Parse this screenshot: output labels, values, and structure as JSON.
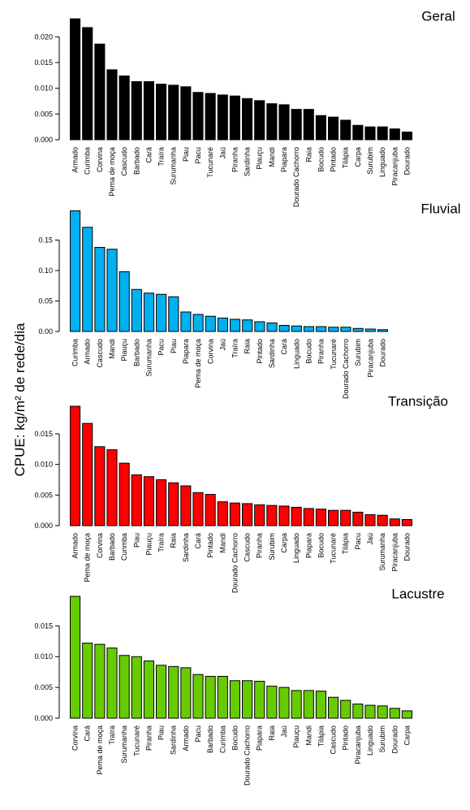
{
  "ylabel": "CPUE: kg/m² de rede/dia",
  "chart_data": [
    {
      "type": "bar",
      "title": "Geral",
      "color": "#000000",
      "ylim": [
        0,
        0.024
      ],
      "yticks": [
        "0.000",
        "0.005",
        "0.010",
        "0.015",
        "0.020"
      ],
      "yticks_values": [
        0,
        0.005,
        0.01,
        0.015,
        0.02
      ],
      "categories": [
        "Armado",
        "Curimba",
        "Corvina",
        "Pema de moça",
        "Cascudo",
        "Barbado",
        "Cará",
        "Traíra",
        "Surumanha",
        "Piau",
        "Pacu",
        "Tucunaré",
        "Jaú",
        "Piranha",
        "Sardinha",
        "Piauçu",
        "Mandi",
        "Piapara",
        "Dourado Cachorro",
        "Raia",
        "Bocudo",
        "Pintado",
        "Tilápia",
        "Carpa",
        "Surubim",
        "Linguado",
        "Piracanjuba",
        "Dourado"
      ],
      "values": [
        0.0235,
        0.0218,
        0.0186,
        0.0136,
        0.0124,
        0.0113,
        0.0113,
        0.0108,
        0.0106,
        0.0103,
        0.0092,
        0.009,
        0.0087,
        0.0085,
        0.008,
        0.0076,
        0.007,
        0.0068,
        0.0059,
        0.0059,
        0.0047,
        0.0044,
        0.0038,
        0.0028,
        0.0025,
        0.0025,
        0.0021,
        0.0015
      ]
    },
    {
      "type": "bar",
      "title": "Fluvial",
      "color": "#00b0f0",
      "ylim": [
        0,
        0.2
      ],
      "yticks": [
        "0.00",
        "0.05",
        "0.10",
        "0.15"
      ],
      "yticks_values": [
        0,
        0.05,
        0.1,
        0.15
      ],
      "categories": [
        "Curimba",
        "Armado",
        "Cascudo",
        "Mandi",
        "Piauçu",
        "Barbado",
        "Surumanha",
        "Pacu",
        "Piau",
        "Piapara",
        "Pema de moça",
        "Corvina",
        "Jaú",
        "Traíra",
        "Raia",
        "Pintado",
        "Sardinha",
        "Cará",
        "Linguado",
        "Bocudo",
        "Piranha",
        "Tucunaré",
        "Dourado Cachorro",
        "Surubim",
        "Piracanjuba",
        "Dourado"
      ],
      "values": [
        0.198,
        0.171,
        0.138,
        0.135,
        0.098,
        0.069,
        0.063,
        0.061,
        0.057,
        0.032,
        0.028,
        0.025,
        0.022,
        0.02,
        0.019,
        0.016,
        0.014,
        0.01,
        0.009,
        0.008,
        0.008,
        0.007,
        0.007,
        0.005,
        0.004,
        0.003
      ]
    },
    {
      "type": "bar",
      "title": "Transição",
      "color": "#ff0000",
      "ylim": [
        0,
        0.0203
      ],
      "yticks": [
        "0.000",
        "0.005",
        "0.010",
        "0.015"
      ],
      "yticks_values": [
        0,
        0.005,
        0.01,
        0.015
      ],
      "categories": [
        "Armado",
        "Pema de moça",
        "Corvina",
        "Barbado",
        "Curimba",
        "Piau",
        "Piauçu",
        "Traíra",
        "Raia",
        "Sardinha",
        "Cará",
        "Pintado",
        "Mandi",
        "Dourado Cachorro",
        "Cascudo",
        "Piranha",
        "Surubim",
        "Carpa",
        "Linguado",
        "Piapara",
        "Bocudo",
        "Tucunaré",
        "Tilápia",
        "Pacu",
        "Jaú",
        "Surumanha",
        "Piracanjuba",
        "Dourado"
      ],
      "values": [
        0.0195,
        0.0167,
        0.0129,
        0.0124,
        0.0102,
        0.0083,
        0.008,
        0.0075,
        0.007,
        0.0065,
        0.0054,
        0.0051,
        0.0039,
        0.0037,
        0.0036,
        0.0034,
        0.0033,
        0.0032,
        0.003,
        0.0028,
        0.0027,
        0.0025,
        0.0025,
        0.0022,
        0.0018,
        0.0017,
        0.0011,
        0.001
      ]
    },
    {
      "type": "bar",
      "title": "Lacustre",
      "color": "#66cc00",
      "ylim": [
        0,
        0.0198
      ],
      "yticks": [
        "0.000",
        "0.005",
        "0.010",
        "0.015"
      ],
      "yticks_values": [
        0,
        0.005,
        0.01,
        0.015
      ],
      "categories": [
        "Corvina",
        "Cará",
        "Pema de moça",
        "Traíra",
        "Surumanha",
        "Tucunaré",
        "Piranha",
        "Piau",
        "Sardinha",
        "Armado",
        "Pacu",
        "Barbado",
        "Curimba",
        "Bocudo",
        "Dourado Cachorro",
        "Piapara",
        "Raia",
        "Jaú",
        "Piauçu",
        "Mandi",
        "Tilápia",
        "Cascudo",
        "Pintado",
        "Piracanjuba",
        "Linguado",
        "Surubim",
        "Dourado",
        "Carpa"
      ],
      "values": [
        0.0198,
        0.0122,
        0.012,
        0.0114,
        0.0102,
        0.01,
        0.0093,
        0.0086,
        0.0084,
        0.0082,
        0.0071,
        0.0068,
        0.0068,
        0.0061,
        0.0061,
        0.006,
        0.0052,
        0.005,
        0.0045,
        0.0045,
        0.0044,
        0.0034,
        0.0029,
        0.0023,
        0.0021,
        0.002,
        0.0016,
        0.0012
      ]
    }
  ]
}
